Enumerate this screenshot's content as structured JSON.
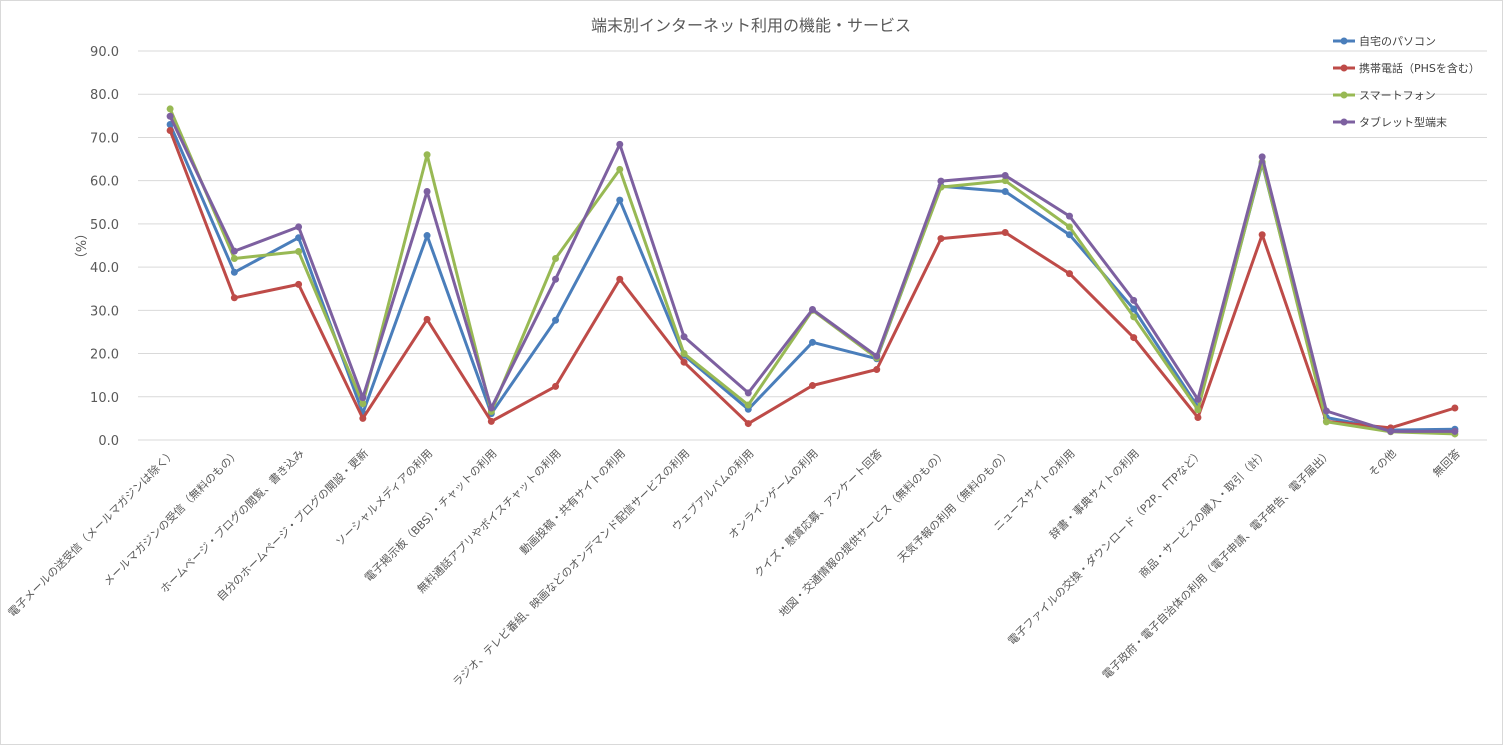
{
  "chart_data": {
    "type": "line",
    "title": "端末別インターネット利用の機能・サービス",
    "xlabel": "",
    "ylabel": "（%）",
    "ylim": [
      0,
      90
    ],
    "yticks": [
      "0.0",
      "10.0",
      "20.0",
      "30.0",
      "40.0",
      "50.0",
      "60.0",
      "70.0",
      "80.0",
      "90.0"
    ],
    "grid": true,
    "legend_position": "top-right",
    "categories": [
      "電子メールの送受信（メールマガジンは除く）",
      "メールマガジンの受信（無料のもの）",
      "ホームページ・ブログの閲覧、書き込み",
      "自分のホームページ・ブログの開設・更新",
      "ソーシャルメディアの利用",
      "電子掲示板（BBS）・チャットの利用",
      "無料通話アプリやボイスチャットの利用",
      "動画投稿・共有サイトの利用",
      "ラジオ、テレビ番組、映画などのオンデマンド配信サービスの利用",
      "ウェブアルバムの利用",
      "オンラインゲームの利用",
      "クイズ・懸賞応募、アンケート回答",
      "地図・交通情報の提供サービス（無料のもの）",
      "天気予報の利用（無料のもの）",
      "ニュースサイトの利用",
      "辞書・事典サイトの利用",
      "電子ファイルの交換・ダウンロード（P2P、FTPなど）",
      "商品・サービスの購入・取引（計）",
      "電子政府・電子自治体の利用（電子申請、電子申告、電子届出）",
      "その他",
      "無回答"
    ],
    "series": [
      {
        "name": "自宅のパソコン",
        "color": "#4a7ebb",
        "values": [
          73.0,
          38.8,
          46.8,
          6.2,
          47.3,
          6.1,
          27.7,
          55.5,
          19.6,
          7.1,
          22.6,
          18.8,
          58.7,
          57.5,
          47.5,
          30.3,
          7.6,
          64.0,
          5.2,
          2.3,
          2.5
        ]
      },
      {
        "name": "携帯電話（PHSを含む）",
        "color": "#be4b48",
        "values": [
          71.6,
          32.9,
          36.0,
          5.0,
          27.9,
          4.3,
          12.4,
          37.2,
          18.0,
          3.8,
          12.6,
          16.3,
          46.6,
          48.0,
          38.5,
          23.7,
          5.2,
          47.5,
          4.3,
          2.8,
          7.4
        ]
      },
      {
        "name": "スマートフォン",
        "color": "#98b954",
        "values": [
          76.6,
          42.0,
          43.6,
          8.4,
          66.0,
          6.6,
          42.0,
          62.6,
          20.0,
          8.1,
          30.0,
          19.0,
          58.5,
          60.0,
          49.3,
          28.5,
          7.0,
          64.3,
          4.2,
          1.9,
          1.4
        ]
      },
      {
        "name": "タブレット型端末",
        "color": "#7d60a0",
        "values": [
          74.9,
          43.7,
          49.3,
          9.8,
          57.5,
          7.4,
          37.2,
          68.4,
          23.9,
          10.9,
          30.2,
          19.4,
          59.9,
          61.2,
          51.8,
          32.3,
          9.4,
          65.5,
          6.7,
          2.0,
          2.0
        ]
      }
    ]
  }
}
